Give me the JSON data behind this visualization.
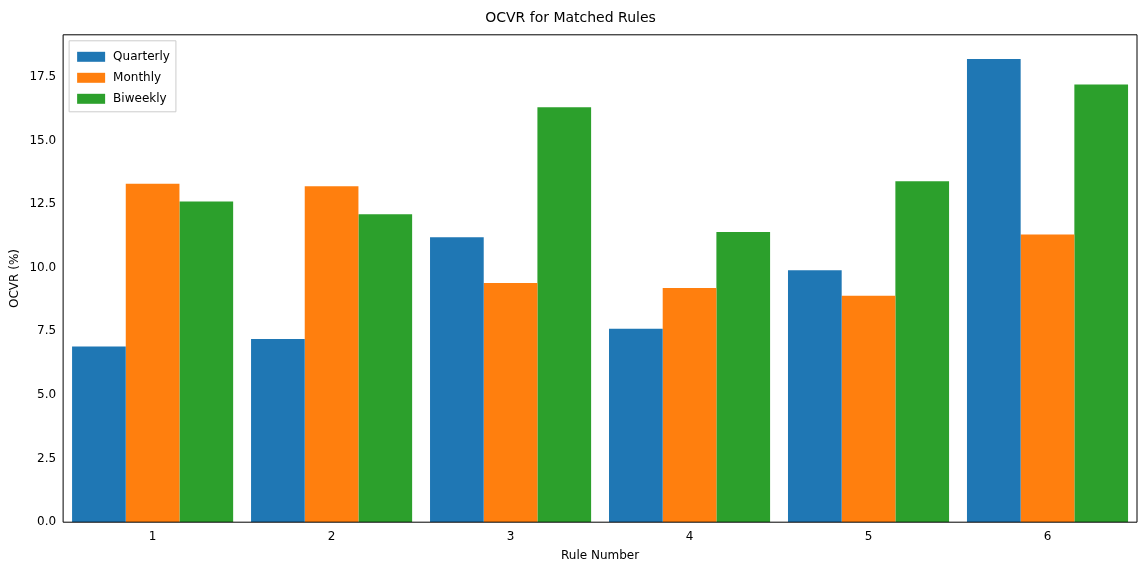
{
  "chart_data": {
    "type": "bar",
    "title": "OCVR for Matched Rules",
    "xlabel": "Rule Number",
    "ylabel": "OCVR (%)",
    "categories": [
      "1",
      "2",
      "3",
      "4",
      "5",
      "6"
    ],
    "series": [
      {
        "name": "Quarterly",
        "color": "#1f77b4",
        "values": [
          6.9,
          7.2,
          11.2,
          7.6,
          9.9,
          18.2
        ]
      },
      {
        "name": "Monthly",
        "color": "#ff7f0e",
        "values": [
          13.3,
          13.2,
          9.4,
          9.2,
          8.9,
          11.3
        ]
      },
      {
        "name": "Biweekly",
        "color": "#2ca02c",
        "values": [
          12.6,
          12.1,
          16.3,
          11.4,
          13.4,
          17.2
        ]
      }
    ],
    "ylim": [
      0,
      19.15
    ],
    "yticks": [
      {
        "value": 0,
        "label": "0.0"
      },
      2.5,
      {
        "value": 5,
        "label": "5.0"
      },
      7.5,
      {
        "value": 10,
        "label": "10.0"
      },
      12.5,
      {
        "value": 15,
        "label": "15.0"
      },
      17.5
    ],
    "grid": false,
    "legend": "top left"
  }
}
